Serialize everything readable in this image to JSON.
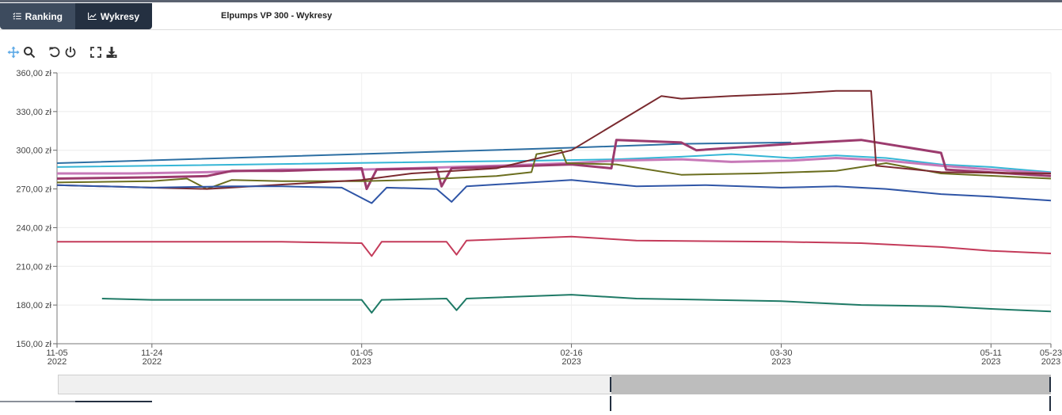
{
  "tabs": [
    {
      "label": "Ranking",
      "icon": "list-icon",
      "active": false
    },
    {
      "label": "Wykresy",
      "icon": "line-chart-icon",
      "active": true
    }
  ],
  "header": {
    "title": "Elpumps VP 300 - Wykresy"
  },
  "toolbar": {
    "icons": [
      "pan-icon",
      "zoom-icon",
      "reset-icon",
      "power-icon",
      "fullscreen-icon",
      "download-icon"
    ]
  },
  "chart_data": {
    "type": "line",
    "title": "",
    "xlabel": "",
    "ylabel": "",
    "x_range": [
      "2022-11-05",
      "2023-05-23"
    ],
    "ylim": [
      150,
      360
    ],
    "y_ticks": [
      "360,00 zł",
      "330,00 zł",
      "300,00 zł",
      "270,00 zł",
      "240,00 zł",
      "210,00 zł",
      "180,00 zł",
      "150,00 zł"
    ],
    "y_tick_values": [
      360,
      330,
      300,
      270,
      240,
      210,
      180,
      150
    ],
    "x_ticks": [
      {
        "date": "2022-11-05",
        "line1": "11-05",
        "line2": "2022"
      },
      {
        "date": "2022-11-24",
        "line1": "11-24",
        "line2": "2022"
      },
      {
        "date": "2023-01-05",
        "line1": "01-05",
        "line2": "2023"
      },
      {
        "date": "2023-02-16",
        "line1": "02-16",
        "line2": "2023"
      },
      {
        "date": "2023-03-30",
        "line1": "03-30",
        "line2": "2023"
      },
      {
        "date": "2023-05-11",
        "line1": "05-11",
        "line2": "2023"
      },
      {
        "date": "2023-05-23",
        "line1": "05-23",
        "line2": "2023"
      }
    ],
    "grid": true,
    "legend": "none",
    "series": [
      {
        "color": "#2d6fa3",
        "width": 2,
        "points": [
          [
            "2022-11-05",
            290
          ],
          [
            "2023-02-16",
            302
          ],
          [
            "2023-03-10",
            305
          ],
          [
            "2023-04-01",
            306
          ]
        ]
      },
      {
        "color": "#35b6d6",
        "width": 2,
        "points": [
          [
            "2022-11-05",
            287
          ],
          [
            "2023-02-10",
            292
          ],
          [
            "2023-02-25",
            293
          ],
          [
            "2023-03-10",
            295
          ],
          [
            "2023-03-20",
            297
          ],
          [
            "2023-04-01",
            294
          ],
          [
            "2023-04-10",
            296
          ],
          [
            "2023-04-20",
            294
          ],
          [
            "2023-05-01",
            289
          ],
          [
            "2023-05-11",
            287
          ],
          [
            "2023-05-23",
            283
          ]
        ]
      },
      {
        "color": "#c779b8",
        "width": 3,
        "points": [
          [
            "2022-11-05",
            282
          ],
          [
            "2022-11-20",
            282
          ],
          [
            "2022-12-05",
            283
          ],
          [
            "2022-12-20",
            285
          ],
          [
            "2023-01-05",
            285
          ],
          [
            "2023-01-15",
            286
          ],
          [
            "2023-02-01",
            288
          ],
          [
            "2023-02-16",
            290
          ],
          [
            "2023-02-25",
            292
          ],
          [
            "2023-03-10",
            293
          ],
          [
            "2023-03-20",
            291
          ],
          [
            "2023-04-01",
            292
          ],
          [
            "2023-04-10",
            294
          ],
          [
            "2023-04-20",
            292
          ],
          [
            "2023-05-01",
            288
          ],
          [
            "2023-05-11",
            285
          ],
          [
            "2023-05-23",
            282
          ]
        ]
      },
      {
        "color": "#9c3b6e",
        "width": 3,
        "points": [
          [
            "2022-11-05",
            278
          ],
          [
            "2022-11-24",
            279
          ],
          [
            "2022-12-05",
            280
          ],
          [
            "2022-12-10",
            284
          ],
          [
            "2022-12-20",
            284
          ],
          [
            "2023-01-05",
            286
          ],
          [
            "2023-01-06",
            270
          ],
          [
            "2023-01-08",
            285
          ],
          [
            "2023-01-20",
            286
          ],
          [
            "2023-01-21",
            272
          ],
          [
            "2023-01-23",
            286
          ],
          [
            "2023-02-16",
            289
          ],
          [
            "2023-02-24",
            286
          ],
          [
            "2023-02-25",
            308
          ],
          [
            "2023-03-10",
            306
          ],
          [
            "2023-03-13",
            300
          ],
          [
            "2023-04-01",
            305
          ],
          [
            "2023-04-15",
            308
          ],
          [
            "2023-05-01",
            298
          ],
          [
            "2023-05-02",
            285
          ],
          [
            "2023-05-23",
            280
          ]
        ]
      },
      {
        "color": "#6b6e1f",
        "width": 2,
        "points": [
          [
            "2022-11-05",
            275
          ],
          [
            "2022-11-24",
            276
          ],
          [
            "2022-12-01",
            278
          ],
          [
            "2022-12-05",
            270
          ],
          [
            "2022-12-10",
            277
          ],
          [
            "2022-12-20",
            276
          ],
          [
            "2023-01-05",
            276
          ],
          [
            "2023-01-15",
            277
          ],
          [
            "2023-02-01",
            280
          ],
          [
            "2023-02-08",
            283
          ],
          [
            "2023-02-09",
            297
          ],
          [
            "2023-02-14",
            300
          ],
          [
            "2023-02-15",
            290
          ],
          [
            "2023-02-25",
            289
          ],
          [
            "2023-03-10",
            281
          ],
          [
            "2023-03-25",
            282
          ],
          [
            "2023-04-10",
            284
          ],
          [
            "2023-04-20",
            290
          ],
          [
            "2023-05-01",
            282
          ],
          [
            "2023-05-23",
            278
          ]
        ]
      },
      {
        "color": "#7a2a2f",
        "width": 2,
        "points": [
          [
            "2022-11-05",
            273
          ],
          [
            "2022-11-24",
            271
          ],
          [
            "2022-12-05",
            270
          ],
          [
            "2023-01-05",
            277
          ],
          [
            "2023-01-15",
            282
          ],
          [
            "2023-02-01",
            286
          ],
          [
            "2023-02-16",
            300
          ],
          [
            "2023-03-06",
            342
          ],
          [
            "2023-03-10",
            340
          ],
          [
            "2023-03-20",
            342
          ],
          [
            "2023-04-01",
            344
          ],
          [
            "2023-04-10",
            346
          ],
          [
            "2023-04-17",
            346
          ],
          [
            "2023-04-18",
            288
          ],
          [
            "2023-05-01",
            283
          ],
          [
            "2023-05-23",
            282
          ]
        ]
      },
      {
        "color": "#2f55a6",
        "width": 2,
        "points": [
          [
            "2022-11-05",
            273
          ],
          [
            "2022-11-24",
            271
          ],
          [
            "2022-12-10",
            272
          ],
          [
            "2022-12-20",
            272
          ],
          [
            "2023-01-01",
            271
          ],
          [
            "2023-01-07",
            259
          ],
          [
            "2023-01-10",
            271
          ],
          [
            "2023-01-20",
            270
          ],
          [
            "2023-01-23",
            260
          ],
          [
            "2023-01-26",
            272
          ],
          [
            "2023-02-16",
            277
          ],
          [
            "2023-03-01",
            272
          ],
          [
            "2023-03-15",
            273
          ],
          [
            "2023-03-30",
            271
          ],
          [
            "2023-04-10",
            272
          ],
          [
            "2023-04-20",
            270
          ],
          [
            "2023-05-01",
            266
          ],
          [
            "2023-05-11",
            264
          ],
          [
            "2023-05-23",
            261
          ]
        ]
      },
      {
        "color": "#c43b5a",
        "width": 2,
        "points": [
          [
            "2022-11-05",
            229
          ],
          [
            "2022-11-24",
            229
          ],
          [
            "2022-12-20",
            229
          ],
          [
            "2023-01-05",
            228
          ],
          [
            "2023-01-07",
            218
          ],
          [
            "2023-01-09",
            229
          ],
          [
            "2023-01-22",
            229
          ],
          [
            "2023-01-24",
            219
          ],
          [
            "2023-01-26",
            230
          ],
          [
            "2023-02-16",
            233
          ],
          [
            "2023-03-01",
            230
          ],
          [
            "2023-03-30",
            229
          ],
          [
            "2023-04-15",
            228
          ],
          [
            "2023-05-01",
            225
          ],
          [
            "2023-05-11",
            222
          ],
          [
            "2023-05-23",
            220
          ]
        ]
      },
      {
        "color": "#1f7a66",
        "width": 2,
        "points": [
          [
            "2022-11-14",
            185
          ],
          [
            "2022-11-24",
            184
          ],
          [
            "2022-12-20",
            184
          ],
          [
            "2023-01-05",
            184
          ],
          [
            "2023-01-07",
            174
          ],
          [
            "2023-01-09",
            184
          ],
          [
            "2023-01-22",
            185
          ],
          [
            "2023-01-24",
            176
          ],
          [
            "2023-01-26",
            185
          ],
          [
            "2023-02-16",
            188
          ],
          [
            "2023-03-01",
            185
          ],
          [
            "2023-03-30",
            183
          ],
          [
            "2023-04-15",
            180
          ],
          [
            "2023-05-01",
            179
          ],
          [
            "2023-05-11",
            177
          ],
          [
            "2023-05-23",
            175
          ]
        ]
      }
    ],
    "navigator": {
      "selected_start": "2023-02-24",
      "selected_end": "2023-05-23"
    }
  }
}
